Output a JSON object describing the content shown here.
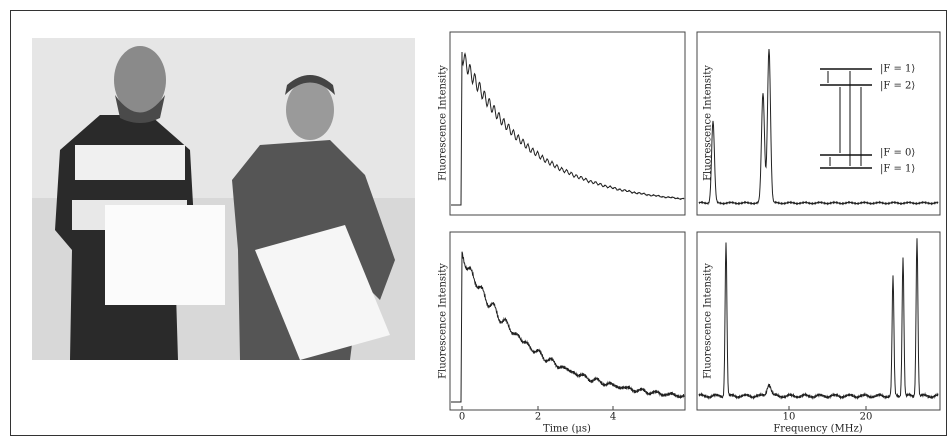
{
  "panels": [
    {
      "y_label": "Fluorescence Intensity"
    },
    {
      "y_label": "Fluorescence Intensity"
    },
    {
      "y_label": "Fluorescence Intensity"
    },
    {
      "y_label": "Fluorescence Intensity"
    }
  ],
  "time_axis": {
    "label": "Time (μs)",
    "ticks": [
      0,
      2,
      4
    ]
  },
  "frequency_axis": {
    "label": "Frequency (MHz)",
    "ticks": [
      10,
      20
    ]
  },
  "levels": [
    "|F = 1⟩",
    "|F = 2⟩",
    "|F = 0⟩",
    "|F = 1⟩"
  ]
}
